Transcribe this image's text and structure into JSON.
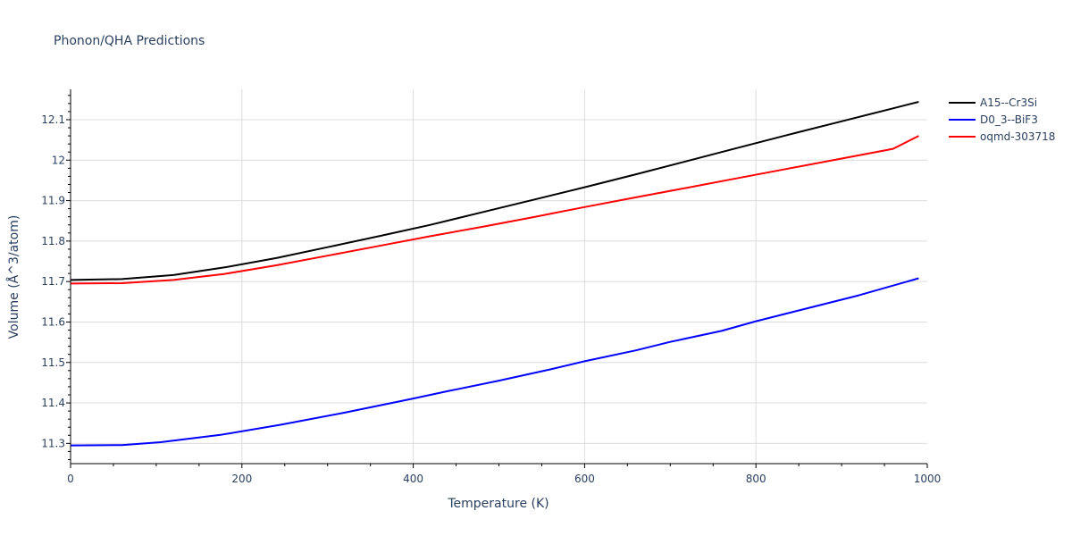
{
  "chart_data": {
    "type": "line",
    "title": "Phonon/QHA Predictions",
    "xlabel": "Temperature (K)",
    "ylabel": "Volume (Å^3/atom)",
    "xlim": [
      0,
      1000
    ],
    "ylim": [
      11.25,
      12.175
    ],
    "x_ticks": [
      "0",
      "200",
      "400",
      "600",
      "800",
      "1000"
    ],
    "y_ticks": [
      "11.3",
      "11.4",
      "11.5",
      "11.6",
      "11.7",
      "11.8",
      "11.9",
      "12",
      "12.1"
    ],
    "grid": true,
    "legend_position": "top-right",
    "series": [
      {
        "name": "A15--Cr3Si",
        "color": "#000000",
        "x": [
          0,
          60,
          120,
          180,
          240,
          300,
          360,
          420,
          480,
          540,
          600,
          660,
          720,
          780,
          840,
          900,
          960,
          990
        ],
        "y": [
          11.704,
          11.706,
          11.716,
          11.735,
          11.758,
          11.785,
          11.812,
          11.84,
          11.871,
          11.902,
          11.933,
          11.965,
          11.998,
          12.031,
          12.064,
          12.096,
          12.128,
          12.144
        ]
      },
      {
        "name": "D0_3--BiF3",
        "color": "#0000ff",
        "x": [
          0,
          60,
          105,
          175,
          245,
          320,
          400,
          440,
          500,
          560,
          600,
          660,
          700,
          760,
          800,
          860,
          920,
          990
        ],
        "y": [
          11.295,
          11.296,
          11.303,
          11.321,
          11.346,
          11.376,
          11.411,
          11.429,
          11.455,
          11.483,
          11.503,
          11.53,
          11.551,
          11.578,
          11.602,
          11.634,
          11.666,
          11.708
        ]
      },
      {
        "name": "oqmd-303718",
        "color": "#ff0000",
        "x": [
          0,
          60,
          120,
          180,
          240,
          300,
          360,
          420,
          480,
          540,
          600,
          660,
          720,
          780,
          840,
          900,
          960,
          990
        ],
        "y": [
          11.695,
          11.696,
          11.704,
          11.719,
          11.74,
          11.764,
          11.788,
          11.812,
          11.835,
          11.859,
          11.884,
          11.908,
          11.932,
          11.956,
          11.98,
          12.004,
          12.028,
          12.06
        ]
      }
    ]
  }
}
